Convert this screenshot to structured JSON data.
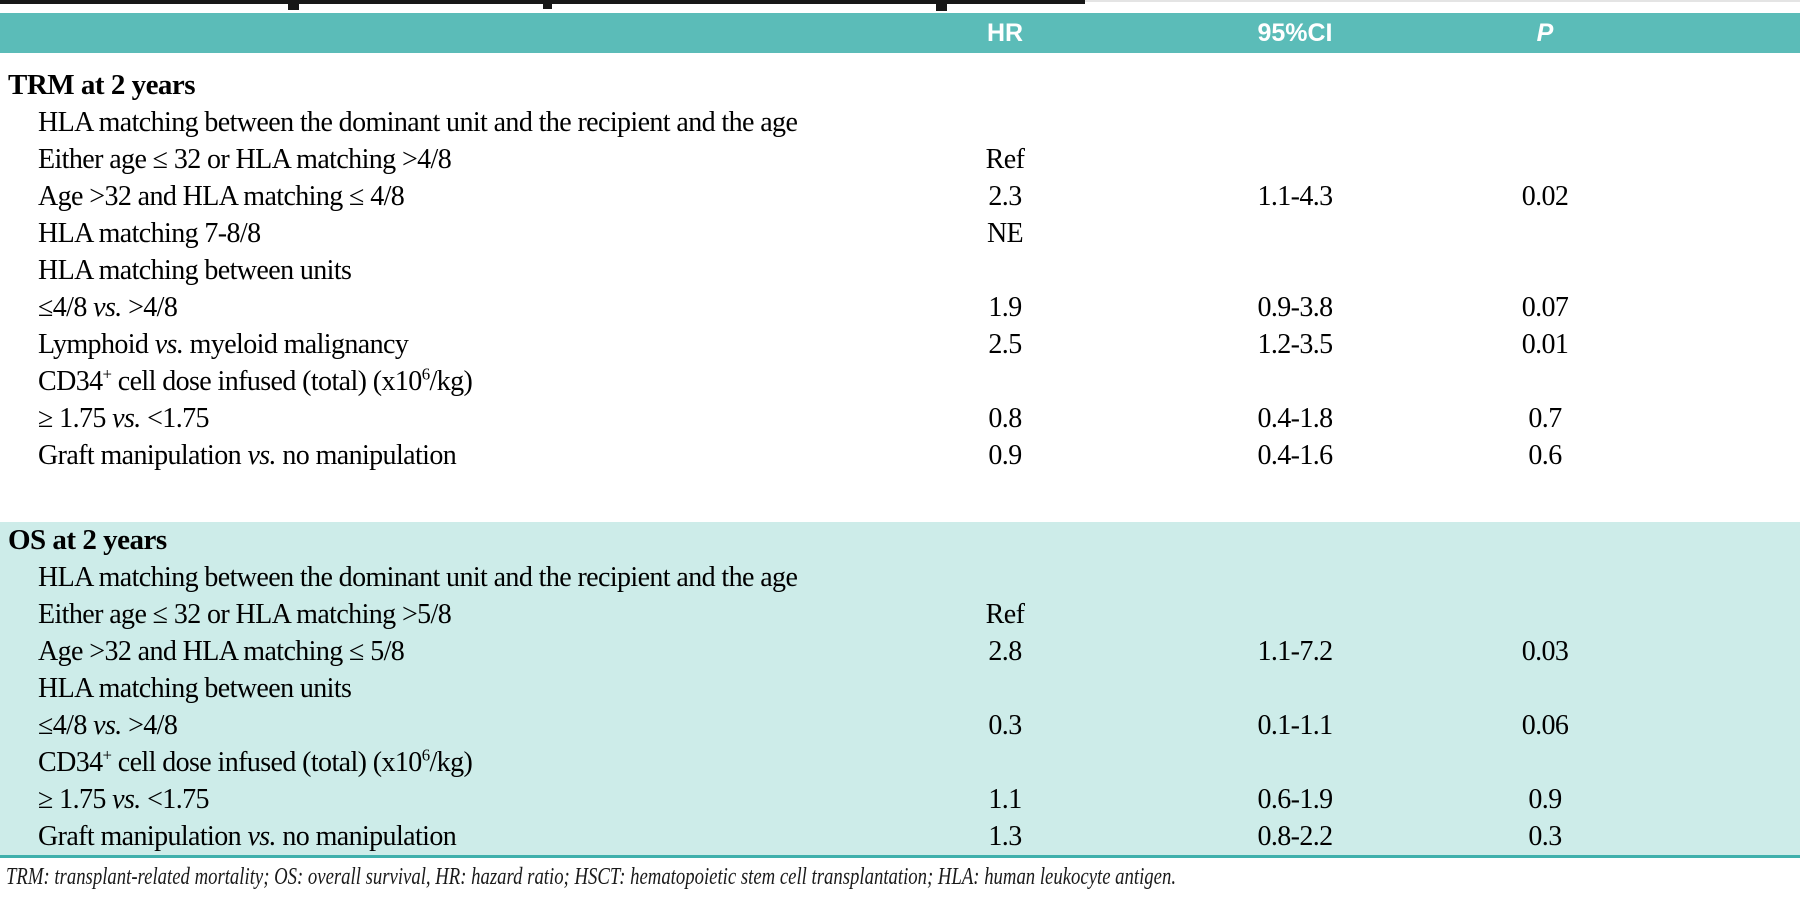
{
  "colors": {
    "header_bg": "#5bbcb8",
    "os_section_bg": "#cdece9",
    "divider_teal": "#3fb0ac"
  },
  "table": {
    "columns": {
      "hr": "HR",
      "ci": "95%CI",
      "p": "P"
    },
    "sections": [
      {
        "name": "TRM at 2 years",
        "rows": [
          {
            "bold": true,
            "indent": false,
            "label": [
              {
                "t": "TRM at 2 years"
              }
            ],
            "hr": "",
            "ci": "",
            "p": ""
          },
          {
            "bold": false,
            "indent": true,
            "label": [
              {
                "t": "HLA matching between the dominant unit and the recipient and the age"
              }
            ],
            "hr": "",
            "ci": "",
            "p": ""
          },
          {
            "bold": false,
            "indent": true,
            "label": [
              {
                "t": "Either age ≤ 32 or HLA matching >4/8"
              }
            ],
            "hr": "Ref",
            "ci": "",
            "p": ""
          },
          {
            "bold": false,
            "indent": true,
            "label": [
              {
                "t": "Age >32 and HLA matching ≤ 4/8"
              }
            ],
            "hr": "2.3",
            "ci": "1.1-4.3",
            "p": "0.02"
          },
          {
            "bold": false,
            "indent": true,
            "label": [
              {
                "t": "HLA matching 7-8/8"
              }
            ],
            "hr": "NE",
            "ci": "",
            "p": ""
          },
          {
            "bold": false,
            "indent": true,
            "label": [
              {
                "t": "HLA matching between units"
              }
            ],
            "hr": "",
            "ci": "",
            "p": ""
          },
          {
            "bold": false,
            "indent": true,
            "label": [
              {
                "t": "≤4/8 "
              },
              {
                "t": "vs.",
                "style": "italic"
              },
              {
                "t": " >4/8"
              }
            ],
            "hr": "1.9",
            "ci": "0.9-3.8",
            "p": "0.07"
          },
          {
            "bold": false,
            "indent": true,
            "label": [
              {
                "t": "Lymphoid "
              },
              {
                "t": "vs.",
                "style": "italic"
              },
              {
                "t": " myeloid malignancy"
              }
            ],
            "hr": "2.5",
            "ci": "1.2-3.5",
            "p": "0.01"
          },
          {
            "bold": false,
            "indent": true,
            "label": [
              {
                "t": "CD34"
              },
              {
                "t": "+",
                "style": "sup"
              },
              {
                "t": " cell dose infused (total) (x10"
              },
              {
                "t": "6",
                "style": "sup"
              },
              {
                "t": "/kg)"
              }
            ],
            "hr": "",
            "ci": "",
            "p": ""
          },
          {
            "bold": false,
            "indent": true,
            "label": [
              {
                "t": "≥ 1.75 "
              },
              {
                "t": "vs.",
                "style": "italic"
              },
              {
                "t": " <1.75"
              }
            ],
            "hr": "0.8",
            "ci": "0.4-1.8",
            "p": "0.7"
          },
          {
            "bold": false,
            "indent": true,
            "label": [
              {
                "t": "Graft manipulation "
              },
              {
                "t": "vs.",
                "style": "italic"
              },
              {
                "t": " no manipulation"
              }
            ],
            "hr": "0.9",
            "ci": "0.4-1.6",
            "p": "0.6"
          }
        ]
      },
      {
        "name": "OS at 2 years",
        "rows": [
          {
            "bold": true,
            "indent": false,
            "label": [
              {
                "t": "OS at 2 years"
              }
            ],
            "hr": "",
            "ci": "",
            "p": ""
          },
          {
            "bold": false,
            "indent": true,
            "label": [
              {
                "t": "HLA matching between the dominant unit and the recipient and the age"
              }
            ],
            "hr": "",
            "ci": "",
            "p": ""
          },
          {
            "bold": false,
            "indent": true,
            "label": [
              {
                "t": "Either age ≤ 32 or HLA matching >5/8"
              }
            ],
            "hr": "Ref",
            "ci": "",
            "p": ""
          },
          {
            "bold": false,
            "indent": true,
            "label": [
              {
                "t": "Age >32 and HLA matching ≤ 5/8"
              }
            ],
            "hr": "2.8",
            "ci": "1.1-7.2",
            "p": "0.03"
          },
          {
            "bold": false,
            "indent": true,
            "label": [
              {
                "t": "HLA matching between units"
              }
            ],
            "hr": "",
            "ci": "",
            "p": ""
          },
          {
            "bold": false,
            "indent": true,
            "label": [
              {
                "t": "≤4/8 "
              },
              {
                "t": "vs.",
                "style": "italic"
              },
              {
                "t": " >4/8"
              }
            ],
            "hr": "0.3",
            "ci": "0.1-1.1",
            "p": "0.06"
          },
          {
            "bold": false,
            "indent": true,
            "label": [
              {
                "t": "CD34"
              },
              {
                "t": "+",
                "style": "sup"
              },
              {
                "t": " cell dose infused (total) (x10"
              },
              {
                "t": "6",
                "style": "sup"
              },
              {
                "t": "/kg)"
              }
            ],
            "hr": "",
            "ci": "",
            "p": ""
          },
          {
            "bold": false,
            "indent": true,
            "label": [
              {
                "t": "≥ 1.75 "
              },
              {
                "t": "vs.",
                "style": "italic"
              },
              {
                "t": " <1.75"
              }
            ],
            "hr": "1.1",
            "ci": "0.6-1.9",
            "p": "0.9"
          },
          {
            "bold": false,
            "indent": true,
            "label": [
              {
                "t": "Graft manipulation "
              },
              {
                "t": "vs.",
                "style": "italic"
              },
              {
                "t": " no manipulation"
              }
            ],
            "hr": "1.3",
            "ci": "0.8-2.2",
            "p": "0.3"
          }
        ]
      }
    ],
    "footnote": "TRM: transplant-related mortality; OS: overall survival, HR: hazard ratio; HSCT: hematopoietic stem cell transplantation; HLA: human leukocyte antigen."
  }
}
